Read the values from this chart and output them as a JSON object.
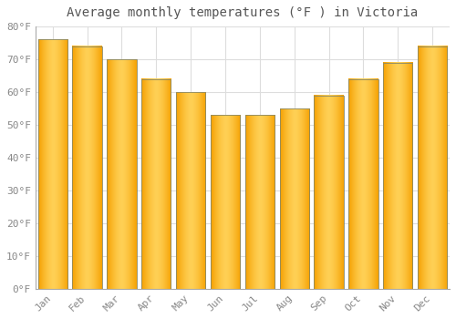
{
  "title": "Average monthly temperatures (°F ) in Victoria",
  "months": [
    "Jan",
    "Feb",
    "Mar",
    "Apr",
    "May",
    "Jun",
    "Jul",
    "Aug",
    "Sep",
    "Oct",
    "Nov",
    "Dec"
  ],
  "values": [
    76,
    74,
    70,
    64,
    60,
    53,
    53,
    55,
    59,
    64,
    69,
    74
  ],
  "bar_color_center": "#FFD055",
  "bar_color_edge": "#F5A000",
  "bar_outline_color": "#888866",
  "background_color": "#ffffff",
  "ylim": [
    0,
    80
  ],
  "yticks": [
    0,
    10,
    20,
    30,
    40,
    50,
    60,
    70,
    80
  ],
  "ytick_labels": [
    "0°F",
    "10°F",
    "20°F",
    "30°F",
    "40°F",
    "50°F",
    "60°F",
    "70°F",
    "80°F"
  ],
  "title_fontsize": 10,
  "tick_fontsize": 8,
  "grid_color": "#dddddd",
  "axis_color": "#aaaaaa",
  "bar_width": 0.85
}
